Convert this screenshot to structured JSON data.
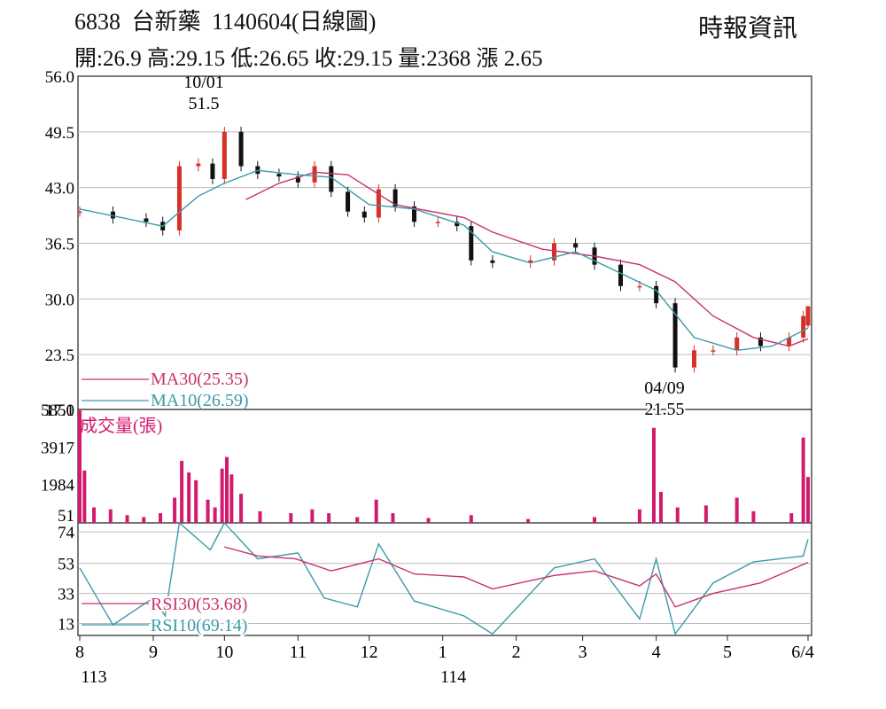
{
  "header": {
    "code": "6838",
    "name": "台新藥",
    "date_label": "1140604(日線圖)",
    "source": "時報資訊",
    "quote": "開:26.9 高:29.15 低:26.65 收:29.15 量:2368 漲 2.65"
  },
  "colors": {
    "up": "#d83028",
    "down": "#111111",
    "ma30": "#c8326e",
    "ma10": "#3a9aa8",
    "volume": "#d21a6e",
    "rsi30": "#c8326e",
    "rsi10": "#3a9aa8",
    "grid": "#bbbbbb"
  },
  "chart_data": [
    {
      "type": "candlestick",
      "ylim": [
        17.1,
        56.0
      ],
      "y_ticks": [
        "56.0",
        "49.5",
        "43.0",
        "36.5",
        "30.0",
        "23.5",
        "17.1"
      ],
      "annotations": [
        {
          "date_label": "10/01",
          "value_label": "51.5",
          "x": "2024-10-01",
          "y": 51.5
        },
        {
          "date_label": "04/09",
          "value_label": "21.55",
          "x": "2025-04-09",
          "y": 21.55
        }
      ],
      "legend": [
        {
          "name": "MA30",
          "label": "MA30(25.35)",
          "value": 25.35
        },
        {
          "name": "MA10",
          "label": "MA10(26.59)",
          "value": 26.59
        }
      ],
      "last_bar": {
        "open": 26.9,
        "high": 29.15,
        "low": 26.65,
        "close": 29.15
      },
      "close_series": [
        [
          "2024-08-01",
          40.2
        ],
        [
          "2024-08-15",
          39.4
        ],
        [
          "2024-08-29",
          39.0
        ],
        [
          "2024-09-05",
          38.0
        ],
        [
          "2024-09-12",
          45.5
        ],
        [
          "2024-09-20",
          45.8
        ],
        [
          "2024-09-26",
          44.0
        ],
        [
          "2024-10-01",
          49.5
        ],
        [
          "2024-10-08",
          45.5
        ],
        [
          "2024-10-15",
          44.6
        ],
        [
          "2024-10-24",
          44.3
        ],
        [
          "2024-11-01",
          43.6
        ],
        [
          "2024-11-08",
          45.5
        ],
        [
          "2024-11-15",
          42.5
        ],
        [
          "2024-11-22",
          40.2
        ],
        [
          "2024-11-29",
          39.5
        ],
        [
          "2024-12-05",
          42.8
        ],
        [
          "2024-12-12",
          40.8
        ],
        [
          "2024-12-20",
          39.0
        ],
        [
          "2024-12-30",
          39.0
        ],
        [
          "2025-01-07",
          38.5
        ],
        [
          "2025-01-13",
          34.5
        ],
        [
          "2025-01-22",
          34.2
        ],
        [
          "2025-02-07",
          34.5
        ],
        [
          "2025-02-17",
          36.5
        ],
        [
          "2025-02-26",
          36.0
        ],
        [
          "2025-03-06",
          34.0
        ],
        [
          "2025-03-17",
          31.5
        ],
        [
          "2025-03-25",
          31.5
        ],
        [
          "2025-04-01",
          29.5
        ],
        [
          "2025-04-09",
          22.0
        ],
        [
          "2025-04-17",
          24.0
        ],
        [
          "2025-04-25",
          24.0
        ],
        [
          "2025-05-05",
          25.5
        ],
        [
          "2025-05-15",
          24.5
        ],
        [
          "2025-05-27",
          25.5
        ],
        [
          "2025-06-02",
          28.0
        ],
        [
          "2025-06-04",
          29.15
        ]
      ],
      "ma10_series": [
        [
          "2024-08-01",
          40.5
        ],
        [
          "2024-09-05",
          38.5
        ],
        [
          "2024-09-20",
          42.0
        ],
        [
          "2024-10-01",
          43.5
        ],
        [
          "2024-10-15",
          45.0
        ],
        [
          "2024-11-01",
          44.5
        ],
        [
          "2024-11-15",
          44.2
        ],
        [
          "2024-12-01",
          41.0
        ],
        [
          "2024-12-20",
          40.5
        ],
        [
          "2025-01-10",
          38.6
        ],
        [
          "2025-01-22",
          35.5
        ],
        [
          "2025-02-07",
          34.2
        ],
        [
          "2025-02-26",
          35.5
        ],
        [
          "2025-03-17",
          33.0
        ],
        [
          "2025-04-01",
          31.0
        ],
        [
          "2025-04-17",
          25.5
        ],
        [
          "2025-05-05",
          24.0
        ],
        [
          "2025-05-20",
          24.5
        ],
        [
          "2025-06-04",
          26.59
        ]
      ],
      "ma30_series": [
        [
          "2024-10-10",
          41.6
        ],
        [
          "2024-10-24",
          43.5
        ],
        [
          "2024-11-08",
          44.8
        ],
        [
          "2024-11-22",
          44.5
        ],
        [
          "2024-12-12",
          41.0
        ],
        [
          "2025-01-10",
          39.5
        ],
        [
          "2025-01-22",
          37.8
        ],
        [
          "2025-02-12",
          35.8
        ],
        [
          "2025-03-06",
          35.0
        ],
        [
          "2025-03-25",
          34.0
        ],
        [
          "2025-04-09",
          32.0
        ],
        [
          "2025-04-25",
          28.0
        ],
        [
          "2025-05-12",
          25.5
        ],
        [
          "2025-05-27",
          24.5
        ],
        [
          "2025-06-04",
          25.35
        ]
      ]
    },
    {
      "type": "bar",
      "title": "成交量(張)",
      "y_ticks": [
        "5850",
        "3917",
        "1984",
        "51"
      ],
      "ylim": [
        0,
        5850
      ],
      "series": [
        [
          "2024-08-01",
          5800
        ],
        [
          "2024-08-03",
          2700
        ],
        [
          "2024-08-07",
          800
        ],
        [
          "2024-08-14",
          700
        ],
        [
          "2024-08-21",
          400
        ],
        [
          "2024-08-28",
          300
        ],
        [
          "2024-09-04",
          500
        ],
        [
          "2024-09-10",
          1300
        ],
        [
          "2024-09-13",
          3200
        ],
        [
          "2024-09-16",
          2600
        ],
        [
          "2024-09-19",
          2200
        ],
        [
          "2024-09-24",
          1200
        ],
        [
          "2024-09-27",
          800
        ],
        [
          "2024-09-30",
          2800
        ],
        [
          "2024-10-02",
          3400
        ],
        [
          "2024-10-04",
          2500
        ],
        [
          "2024-10-08",
          1500
        ],
        [
          "2024-10-16",
          600
        ],
        [
          "2024-10-29",
          500
        ],
        [
          "2024-11-07",
          700
        ],
        [
          "2024-11-14",
          500
        ],
        [
          "2024-11-26",
          300
        ],
        [
          "2024-12-04",
          1200
        ],
        [
          "2024-12-11",
          500
        ],
        [
          "2024-12-26",
          250
        ],
        [
          "2025-01-13",
          400
        ],
        [
          "2025-02-06",
          200
        ],
        [
          "2025-03-06",
          300
        ],
        [
          "2025-03-25",
          700
        ],
        [
          "2025-03-31",
          4900
        ],
        [
          "2025-04-03",
          1600
        ],
        [
          "2025-04-10",
          800
        ],
        [
          "2025-04-22",
          900
        ],
        [
          "2025-05-05",
          1300
        ],
        [
          "2025-05-12",
          600
        ],
        [
          "2025-05-28",
          500
        ],
        [
          "2025-06-02",
          4400
        ],
        [
          "2025-06-04",
          2368
        ]
      ]
    },
    {
      "type": "line",
      "y_ticks": [
        "74",
        "53",
        "33",
        "13"
      ],
      "ylim": [
        5,
        80
      ],
      "legend": [
        {
          "name": "RSI30",
          "label": "RSI30(53.68)",
          "value": 53.68
        },
        {
          "name": "RSI10",
          "label": "RSI10(69.14)",
          "value": 69.14
        }
      ],
      "rsi30_series": [
        [
          "2024-10-01",
          64
        ],
        [
          "2024-10-15",
          58
        ],
        [
          "2024-10-31",
          56
        ],
        [
          "2024-11-15",
          48
        ],
        [
          "2024-12-05",
          56
        ],
        [
          "2024-12-20",
          46
        ],
        [
          "2025-01-10",
          44
        ],
        [
          "2025-01-22",
          36
        ],
        [
          "2025-02-17",
          45
        ],
        [
          "2025-03-06",
          48
        ],
        [
          "2025-03-25",
          38
        ],
        [
          "2025-04-01",
          46
        ],
        [
          "2025-04-09",
          24
        ],
        [
          "2025-04-25",
          33
        ],
        [
          "2025-05-15",
          40
        ],
        [
          "2025-06-04",
          53.68
        ]
      ],
      "rsi10_series": [
        [
          "2024-08-01",
          50
        ],
        [
          "2024-08-15",
          12
        ],
        [
          "2024-09-01",
          30
        ],
        [
          "2024-09-06",
          18
        ],
        [
          "2024-09-12",
          80
        ],
        [
          "2024-09-25",
          62
        ],
        [
          "2024-10-01",
          80
        ],
        [
          "2024-10-15",
          56
        ],
        [
          "2024-11-01",
          60
        ],
        [
          "2024-11-12",
          30
        ],
        [
          "2024-11-26",
          24
        ],
        [
          "2024-12-05",
          66
        ],
        [
          "2024-12-20",
          28
        ],
        [
          "2025-01-10",
          18
        ],
        [
          "2025-01-22",
          6
        ],
        [
          "2025-02-17",
          50
        ],
        [
          "2025-03-06",
          56
        ],
        [
          "2025-03-25",
          16
        ],
        [
          "2025-04-01",
          56
        ],
        [
          "2025-04-09",
          6
        ],
        [
          "2025-04-25",
          40
        ],
        [
          "2025-05-12",
          54
        ],
        [
          "2025-06-02",
          58
        ],
        [
          "2025-06-04",
          69.14
        ]
      ]
    }
  ],
  "x_axis": {
    "month_labels": [
      "8",
      "9",
      "10",
      "11",
      "12",
      "1",
      "2",
      "3",
      "4",
      "5",
      "6/4"
    ],
    "year_labels": [
      "113",
      "114"
    ]
  }
}
